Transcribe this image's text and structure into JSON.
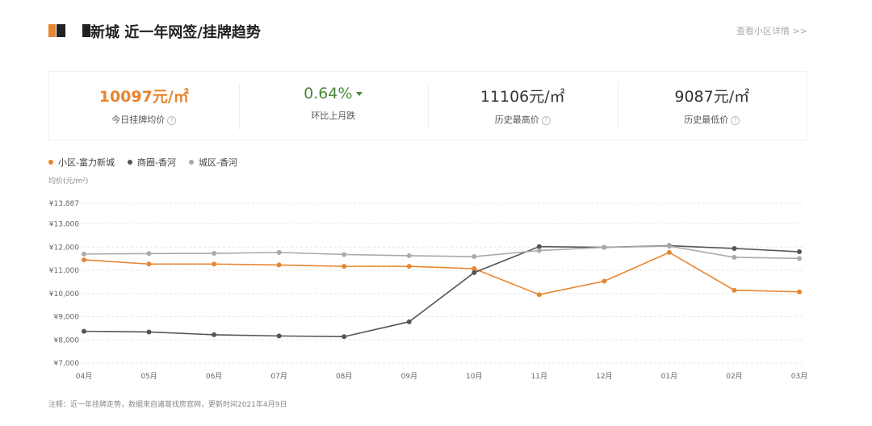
{
  "header": {
    "title": "新城 近一年网签/挂牌趋势",
    "detail_link": "查看小区详情 >>"
  },
  "stats": [
    {
      "value": "10097元/㎡",
      "label": "今日挂牌均价",
      "style": "orange",
      "help": true
    },
    {
      "value": "0.64%",
      "label": "环比上月跌",
      "style": "green",
      "trend": "down"
    },
    {
      "value": "11106元/㎡",
      "label": "历史最高价",
      "style": "",
      "help": true
    },
    {
      "value": "9087元/㎡",
      "label": "历史最低价",
      "style": "",
      "help": true
    }
  ],
  "unit_label": "均价(元/m²)",
  "footnote": "注释：近一年挂牌走势，数据来自诸葛找房官网，更新时间2021年4月9日",
  "chart_data": {
    "type": "line",
    "categories": [
      "04月",
      "05月",
      "06月",
      "07月",
      "08月",
      "09月",
      "10月",
      "11月",
      "12月",
      "01月",
      "02月",
      "03月"
    ],
    "y_ticks": [
      7000,
      8000,
      9000,
      10000,
      11000,
      12000,
      13000,
      13887
    ],
    "y_tick_labels": [
      "¥7,000",
      "¥8,000",
      "¥9,000",
      "¥10,000",
      "¥11,000",
      "¥12,000",
      "¥13,000",
      "¥13,887"
    ],
    "ylim": [
      7000,
      13887
    ],
    "grid": true,
    "legend_position": "top-left",
    "series": [
      {
        "name": "小区-富力新城",
        "color": "#e8852f",
        "values": [
          11450,
          11270,
          11270,
          11230,
          11170,
          11170,
          11070,
          9950,
          10530,
          11770,
          10140,
          10070
        ]
      },
      {
        "name": "商圈-香河",
        "color": "#555555",
        "values": [
          8370,
          8340,
          8220,
          8170,
          8140,
          8780,
          10900,
          12020,
          11990,
          12060,
          11940,
          11800
        ]
      },
      {
        "name": "城区-香河",
        "color": "#aaaaaa",
        "values": [
          11700,
          11720,
          11730,
          11770,
          11680,
          11630,
          11590,
          11850,
          11990,
          12040,
          11560,
          11510
        ]
      }
    ]
  }
}
